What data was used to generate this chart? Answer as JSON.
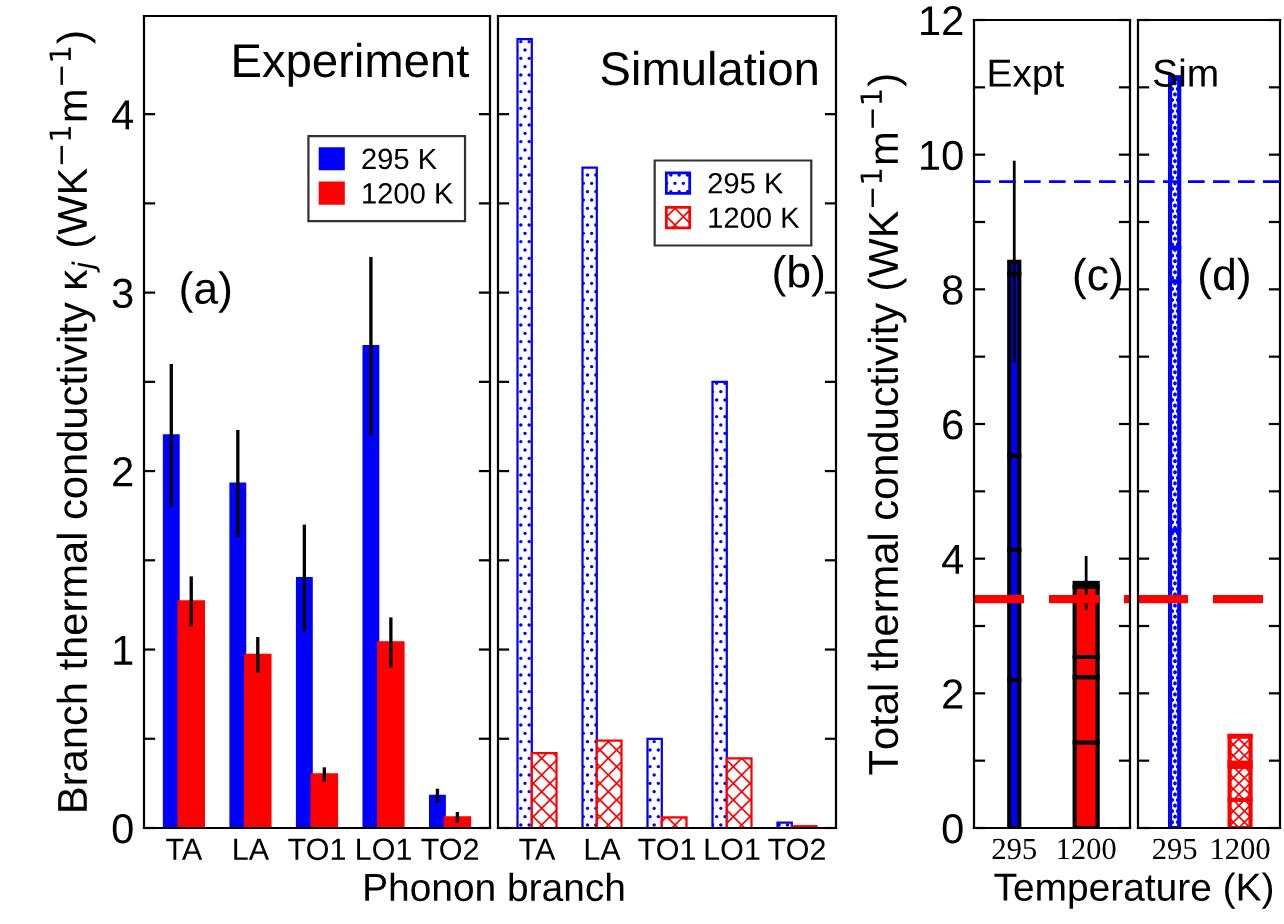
{
  "chart_data": [
    {
      "type": "bar",
      "ylabel": "Branch thermal conductivity κ$_{j}$ (WK$^{−1}$m$^{−1}$)",
      "xlabel": "Phonon branch",
      "annotations": [
        "Experiment",
        "(a)"
      ],
      "categories": [
        "TA",
        "LA",
        "TO1",
        "LO1",
        "TO2"
      ],
      "ylim": [
        0,
        4.55
      ],
      "yticks": [
        0,
        {
          "value": 0.5,
          "label": null
        },
        1,
        {
          "value": 1.5,
          "label": null
        },
        2,
        {
          "value": 2.5,
          "label": null
        },
        3,
        {
          "value": 3.5,
          "label": null
        },
        4
      ],
      "legend": "top right",
      "grid": false,
      "series": [
        {
          "name": "295 K",
          "color": "#0000ff",
          "values": [
            2.2,
            1.93,
            1.4,
            2.7,
            0.18
          ],
          "errors": [
            0.4,
            0.3,
            0.3,
            0.5,
            0.04
          ]
        },
        {
          "name": "1200 K",
          "color": "#ff0000",
          "values": [
            1.27,
            0.97,
            0.3,
            1.04,
            0.06
          ],
          "errors": [
            0.14,
            0.1,
            0.04,
            0.14,
            0.03
          ]
        }
      ]
    },
    {
      "type": "bar",
      "annotations": [
        "Simulation",
        "(b)"
      ],
      "categories": [
        "TA",
        "LA",
        "TO1",
        "LO1",
        "TO2"
      ],
      "ylim": [
        0,
        4.55
      ],
      "yticks": [
        0,
        {
          "value": 0.5,
          "label": null
        },
        1,
        {
          "value": 1.5,
          "label": null
        },
        2,
        {
          "value": 2.5,
          "label": null
        },
        3,
        {
          "value": 3.5,
          "label": null
        },
        4
      ],
      "tick_labels": "x",
      "legend": "top right",
      "grid": false,
      "series": [
        {
          "name": "295 K",
          "color": "#0000ff",
          "values": [
            4.42,
            3.7,
            0.5,
            2.5,
            0.03
          ]
        },
        {
          "name": "1200 K",
          "color": "#ff0000",
          "values": [
            0.42,
            0.49,
            0.06,
            0.39,
            0.01
          ]
        }
      ]
    },
    {
      "type": "bar",
      "stacked": true,
      "ylabel": "Total thermal conductivity (WK$^{−1}$m$^{−1}$)",
      "xlabel": "Temperature (K)",
      "annotations": [
        "Expt",
        "(c)"
      ],
      "categories": [
        "295",
        "1200"
      ],
      "ylim": [
        0,
        12
      ],
      "yticks": [
        0,
        {
          "value": 1,
          "label": null
        },
        2,
        {
          "value": 3,
          "label": null
        },
        4,
        {
          "value": 5,
          "label": null
        },
        6,
        {
          "value": 7,
          "label": null
        },
        8,
        {
          "value": 9,
          "label": null
        },
        10,
        {
          "value": 11,
          "label": null
        },
        12
      ],
      "grid": false,
      "ref_lines": [
        {
          "axis": "y",
          "value": 9.6,
          "color": "#0000ff",
          "line_style": "dashed"
        },
        {
          "axis": "y",
          "value": 3.4,
          "color": "#ff0000",
          "line_style": "dashed"
        }
      ],
      "series": [
        {
          "colors": [
            "#0000ff",
            "#ff0000"
          ],
          "values": [
            2.2,
            1.27
          ]
        },
        {
          "colors": [
            "#0000ff",
            "#ff0000"
          ],
          "values": [
            1.93,
            0.97
          ]
        },
        {
          "colors": [
            "#0000ff",
            "#ff0000"
          ],
          "values": [
            1.4,
            0.3
          ]
        },
        {
          "colors": [
            "#0000ff",
            "#ff0000"
          ],
          "values": [
            2.7,
            1.04
          ]
        },
        {
          "colors": [
            "#0000ff",
            "#ff0000"
          ],
          "values": [
            0.18,
            0.06
          ],
          "errors": [
            1.5,
            0.4
          ]
        }
      ]
    },
    {
      "type": "bar",
      "stacked": true,
      "annotations": [
        "Sim",
        "(d)"
      ],
      "categories": [
        "295",
        "1200"
      ],
      "ylim": [
        0,
        12
      ],
      "yticks": [
        0,
        {
          "value": 1,
          "label": null
        },
        2,
        {
          "value": 3,
          "label": null
        },
        4,
        {
          "value": 5,
          "label": null
        },
        6,
        {
          "value": 7,
          "label": null
        },
        8,
        {
          "value": 9,
          "label": null
        },
        10,
        {
          "value": 11,
          "label": null
        },
        12
      ],
      "tick_labels": "x",
      "grid": false,
      "ref_lines": [
        {
          "axis": "y",
          "value": 9.6,
          "color": "#0000ff",
          "line_style": "dashed"
        },
        {
          "axis": "y",
          "value": 3.4,
          "color": "#ff0000",
          "line_style": "dashed"
        }
      ],
      "series": [
        {
          "colors": [
            "#0000ff",
            "#ff0000"
          ],
          "values": [
            4.42,
            0.42
          ]
        },
        {
          "colors": [
            "#0000ff",
            "#ff0000"
          ],
          "values": [
            3.7,
            0.49
          ]
        },
        {
          "colors": [
            "#0000ff",
            "#ff0000"
          ],
          "values": [
            0.5,
            0.06
          ]
        },
        {
          "colors": [
            "#0000ff",
            "#ff0000"
          ],
          "values": [
            2.5,
            0.39
          ]
        },
        {
          "colors": [
            "#0000ff",
            "#ff0000"
          ],
          "values": [
            0.03,
            0.01
          ]
        }
      ]
    }
  ]
}
